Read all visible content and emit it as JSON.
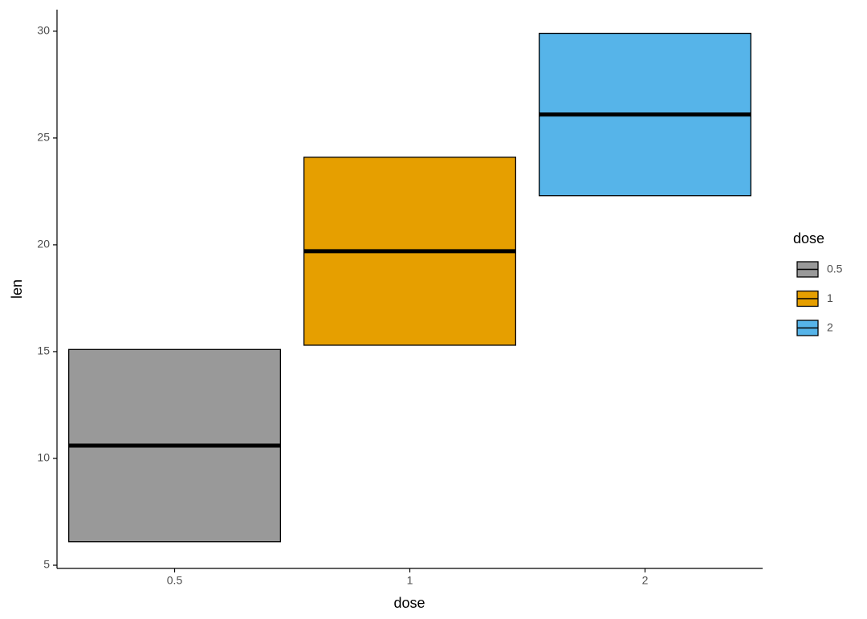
{
  "chart_data": {
    "type": "crossbar",
    "x_label": "dose",
    "y_label": "len",
    "legend_title": "dose",
    "categories": [
      "0.5",
      "1",
      "2"
    ],
    "values": [
      10.6,
      19.7,
      26.1
    ],
    "lower": [
      6.1,
      15.3,
      22.3
    ],
    "upper": [
      15.1,
      24.1,
      29.9
    ],
    "colors": [
      "#999999",
      "#E69F00",
      "#56B4E9"
    ],
    "ylim": [
      4.85,
      31.01
    ],
    "yticks": [
      5,
      10,
      15,
      20,
      25,
      30
    ],
    "grid": false,
    "legend_position": "right"
  }
}
